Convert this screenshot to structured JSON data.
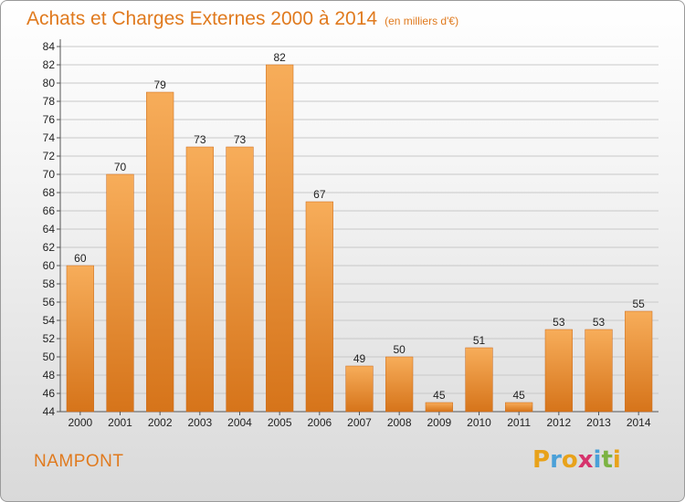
{
  "page": {
    "title": "Achats et Charges Externes 2000 à 2014",
    "subtitle": "(en milliers d'€)",
    "footer_name": "NAMPONT",
    "logo": {
      "letters": [
        "P",
        "r",
        "o",
        "x",
        "i",
        "t",
        "i"
      ],
      "colors": [
        "#e8a21a",
        "#4aa0d8",
        "#e8a21a",
        "#d6336c",
        "#4aa0d8",
        "#7cb342",
        "#e8a21a"
      ]
    }
  },
  "chart_data": {
    "type": "bar",
    "title": "Achats et Charges Externes 2000 à 2014",
    "subtitle": "(en milliers d'€)",
    "categories": [
      "2000",
      "2001",
      "2002",
      "2003",
      "2004",
      "2005",
      "2006",
      "2007",
      "2008",
      "2009",
      "2010",
      "2011",
      "2012",
      "2013",
      "2014"
    ],
    "values": [
      60,
      70,
      79,
      73,
      73,
      82,
      67,
      49,
      50,
      45,
      51,
      45,
      53,
      53,
      55
    ],
    "ylim": [
      44,
      84
    ],
    "yticks": [
      44,
      46,
      48,
      50,
      52,
      54,
      56,
      58,
      60,
      62,
      64,
      66,
      68,
      70,
      72,
      74,
      76,
      78,
      80,
      82,
      84
    ],
    "grid": true,
    "legend": "none",
    "bar_color": "#f0932b",
    "bar_color_light": "#f7ad5a",
    "bar_color_dark": "#d6741a"
  }
}
